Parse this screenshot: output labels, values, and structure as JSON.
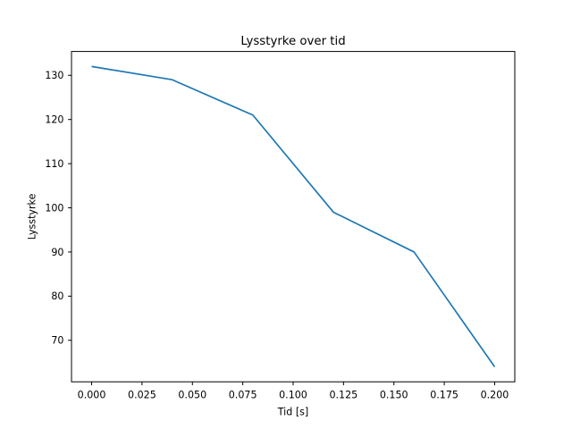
{
  "chart_data": {
    "type": "line",
    "title": "Lysstyrke over tid",
    "xlabel": "Tid [s]",
    "ylabel": "Lysstyrke",
    "x": [
      0.0,
      0.04,
      0.08,
      0.12,
      0.16,
      0.2
    ],
    "y": [
      132,
      129,
      121,
      99,
      90,
      64
    ],
    "xlim": [
      -0.01,
      0.21
    ],
    "ylim": [
      60.6,
      135.4
    ],
    "xticks": [
      0.0,
      0.025,
      0.05,
      0.075,
      0.1,
      0.125,
      0.15,
      0.175,
      0.2
    ],
    "xtick_labels": [
      "0.000",
      "0.025",
      "0.050",
      "0.075",
      "0.100",
      "0.125",
      "0.150",
      "0.175",
      "0.200"
    ],
    "yticks": [
      70,
      80,
      90,
      100,
      110,
      120,
      130
    ],
    "ytick_labels": [
      "70",
      "80",
      "90",
      "100",
      "110",
      "120",
      "130"
    ],
    "grid": false,
    "legend": null,
    "line_color": "#1f77b4",
    "background_color": "#ffffff",
    "spine_color": "#000000",
    "text_color": "#000000"
  }
}
